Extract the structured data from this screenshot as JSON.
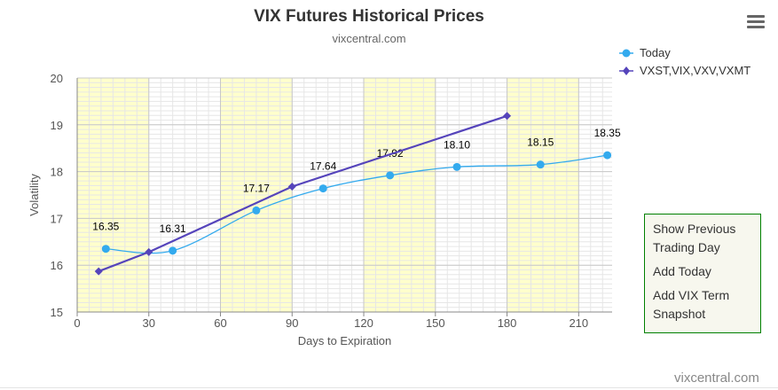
{
  "header": {
    "title": "VIX Futures Historical Prices",
    "subtitle": "vixcentral.com"
  },
  "menu": {
    "icon": "hamburger-menu-icon"
  },
  "legend": {
    "items": [
      {
        "label": "Today",
        "color": "#33aaee",
        "marker": "circle"
      },
      {
        "label": "VXST,VIX,VXV,VXMT",
        "color": "#5544bb",
        "marker": "diamond"
      }
    ]
  },
  "side_panel": {
    "items": [
      "Show Previous Trading Day",
      "Add Today",
      "Add VIX Term Snapshot"
    ]
  },
  "footer": {
    "credit": "vixcentral.com"
  },
  "chart_data": {
    "type": "line",
    "xlabel": "Days to Expiration",
    "ylabel": "Volatility",
    "xlim": [
      0,
      224
    ],
    "ylim": [
      15,
      20
    ],
    "xticks": [
      0,
      30,
      60,
      90,
      120,
      150,
      180,
      210
    ],
    "yticks": [
      15,
      16,
      17,
      18,
      19,
      20
    ],
    "grid": true,
    "legend_position": "top-right",
    "bands": [
      [
        0,
        30
      ],
      [
        60,
        90
      ],
      [
        120,
        150
      ],
      [
        180,
        210
      ]
    ],
    "band_color": "#ffffcc",
    "series": [
      {
        "name": "Today",
        "color": "#33aaee",
        "marker": "circle",
        "smooth": true,
        "x": [
          12,
          40,
          75,
          103,
          131,
          159,
          194,
          222
        ],
        "values": [
          16.35,
          16.31,
          17.17,
          17.64,
          17.92,
          18.1,
          18.15,
          18.35
        ],
        "labels": [
          "16.35",
          "16.31",
          "17.17",
          "17.64",
          "17.92",
          "18.10",
          "18.15",
          "18.35"
        ]
      },
      {
        "name": "VXST,VIX,VXV,VXMT",
        "color": "#5544bb",
        "marker": "diamond",
        "smooth": false,
        "x": [
          9,
          30,
          90,
          180
        ],
        "values": [
          15.87,
          16.28,
          17.68,
          19.19
        ]
      }
    ]
  }
}
